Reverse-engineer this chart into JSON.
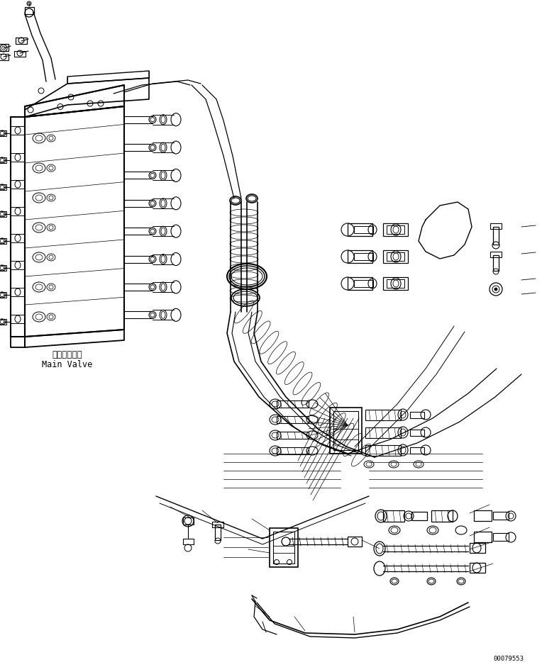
{
  "background_color": "#ffffff",
  "label_main_valve_jp": "メインバルブ",
  "label_main_valve_en": "Main Valve",
  "part_number": "00079553",
  "lc": "#000000",
  "lw_thin": 0.5,
  "lw_med": 0.8,
  "lw_thick": 1.2,
  "lw_heavy": 1.8
}
